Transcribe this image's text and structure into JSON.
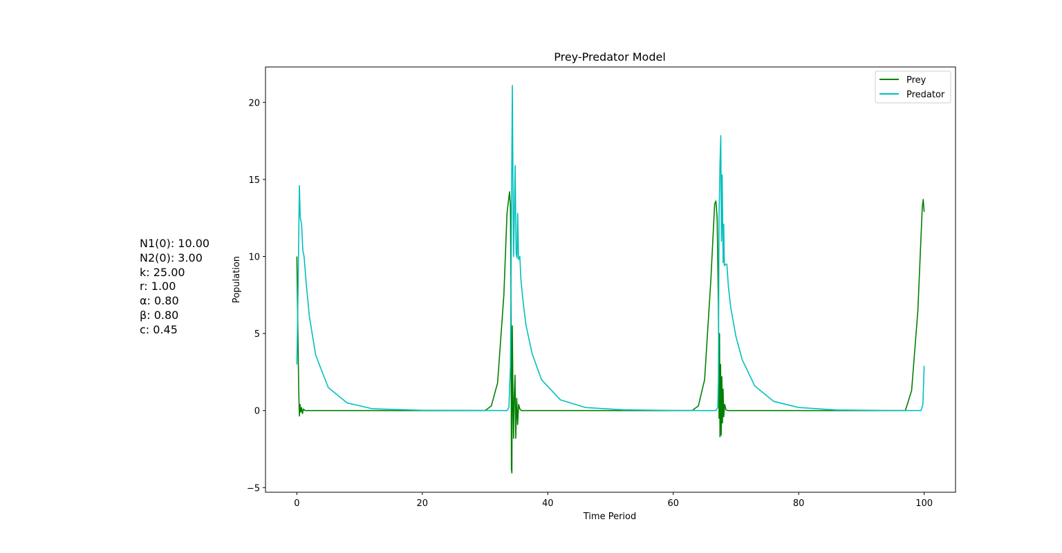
{
  "params": [
    "N1(0): 10.00",
    "N2(0): 3.00",
    "k: 25.00",
    "r: 1.00",
    "α: 0.80",
    "β: 0.80",
    "c: 0.45"
  ],
  "chart_data": {
    "type": "line",
    "title": "Prey-Predator Model",
    "xlabel": "Time Period",
    "ylabel": "Population",
    "xlim": [
      -5,
      105
    ],
    "ylim": [
      -5.3,
      22.3
    ],
    "xticks": [
      0,
      20,
      40,
      60,
      80,
      100
    ],
    "yticks": [
      -5,
      0,
      5,
      10,
      15,
      20
    ],
    "ytick_labels": [
      "−5",
      "0",
      "5",
      "10",
      "15",
      "20"
    ],
    "grid": false,
    "legend": "top-right",
    "series": [
      {
        "name": "Prey",
        "color": "#008000",
        "points": [
          [
            0,
            10
          ],
          [
            0.15,
            5.5
          ],
          [
            0.3,
            1.2
          ],
          [
            0.4,
            -0.35
          ],
          [
            0.5,
            0.4
          ],
          [
            0.62,
            -0.1
          ],
          [
            0.75,
            0.2
          ],
          [
            0.9,
            -0.2
          ],
          [
            1.05,
            0.1
          ],
          [
            1.3,
            0
          ],
          [
            30,
            0
          ],
          [
            31,
            0.3
          ],
          [
            32,
            1.8
          ],
          [
            33,
            7.5
          ],
          [
            33.5,
            12.8
          ],
          [
            33.9,
            14.2
          ],
          [
            34.05,
            13.2
          ],
          [
            34.15,
            6
          ],
          [
            34.2,
            -3.8
          ],
          [
            34.28,
            -4.05
          ],
          [
            34.35,
            5.5
          ],
          [
            34.45,
            1
          ],
          [
            34.55,
            -1.8
          ],
          [
            34.65,
            0.8
          ],
          [
            34.78,
            2.3
          ],
          [
            34.9,
            -1.8
          ],
          [
            35.05,
            0.8
          ],
          [
            35.2,
            -0.9
          ],
          [
            35.35,
            0.4
          ],
          [
            35.55,
            0.1
          ],
          [
            35.8,
            0
          ],
          [
            63,
            0
          ],
          [
            64,
            0.3
          ],
          [
            65,
            2
          ],
          [
            66,
            8.5
          ],
          [
            66.6,
            13.4
          ],
          [
            66.8,
            13.6
          ],
          [
            67,
            12.5
          ],
          [
            67.2,
            7
          ],
          [
            67.3,
            -0.5
          ],
          [
            67.38,
            5
          ],
          [
            67.45,
            -1.7
          ],
          [
            67.55,
            3
          ],
          [
            67.65,
            -1.6
          ],
          [
            67.75,
            2.2
          ],
          [
            67.85,
            -0.8
          ],
          [
            67.95,
            1.4
          ],
          [
            68.05,
            -0.4
          ],
          [
            68.2,
            0.4
          ],
          [
            68.4,
            0.05
          ],
          [
            68.7,
            0
          ],
          [
            97,
            0
          ],
          [
            98,
            1.3
          ],
          [
            99,
            6.5
          ],
          [
            99.7,
            13.2
          ],
          [
            99.85,
            13.7
          ],
          [
            100,
            12.9
          ]
        ]
      },
      {
        "name": "Predator",
        "color": "#00BFBF",
        "points": [
          [
            0,
            3
          ],
          [
            0.2,
            8
          ],
          [
            0.4,
            14.6
          ],
          [
            0.55,
            12.5
          ],
          [
            0.75,
            12.1
          ],
          [
            0.95,
            10.4
          ],
          [
            1.15,
            10
          ],
          [
            1.5,
            8.2
          ],
          [
            2,
            6.1
          ],
          [
            3,
            3.6
          ],
          [
            5,
            1.5
          ],
          [
            8,
            0.5
          ],
          [
            12,
            0.12
          ],
          [
            20,
            0.02
          ],
          [
            33.5,
            0
          ],
          [
            33.8,
            0.2
          ],
          [
            34.05,
            3
          ],
          [
            34.2,
            12
          ],
          [
            34.35,
            21.1
          ],
          [
            34.45,
            15
          ],
          [
            34.55,
            10
          ],
          [
            34.7,
            13.5
          ],
          [
            34.8,
            15.9
          ],
          [
            34.95,
            10.2
          ],
          [
            35.1,
            9.9
          ],
          [
            35.2,
            12.8
          ],
          [
            35.35,
            9.8
          ],
          [
            35.55,
            10
          ],
          [
            35.7,
            8.6
          ],
          [
            36,
            7.3
          ],
          [
            36.5,
            5.6
          ],
          [
            37.5,
            3.7
          ],
          [
            39,
            2
          ],
          [
            42,
            0.7
          ],
          [
            46,
            0.2
          ],
          [
            52,
            0.05
          ],
          [
            60,
            0.01
          ],
          [
            66.8,
            0
          ],
          [
            67.1,
            0.2
          ],
          [
            67.2,
            2
          ],
          [
            67.3,
            12.5
          ],
          [
            67.45,
            16
          ],
          [
            67.58,
            17.85
          ],
          [
            67.68,
            11
          ],
          [
            67.8,
            15.3
          ],
          [
            67.95,
            9.6
          ],
          [
            68.05,
            12.1
          ],
          [
            68.15,
            9.4
          ],
          [
            68.3,
            9.5
          ],
          [
            68.55,
            9.5
          ],
          [
            68.8,
            8
          ],
          [
            69.2,
            6.6
          ],
          [
            70,
            4.8
          ],
          [
            71,
            3.3
          ],
          [
            73,
            1.6
          ],
          [
            76,
            0.6
          ],
          [
            80,
            0.2
          ],
          [
            86,
            0.04
          ],
          [
            93,
            0.01
          ],
          [
            99.5,
            0
          ],
          [
            99.8,
            0.4
          ],
          [
            100,
            2.9
          ]
        ]
      }
    ]
  }
}
